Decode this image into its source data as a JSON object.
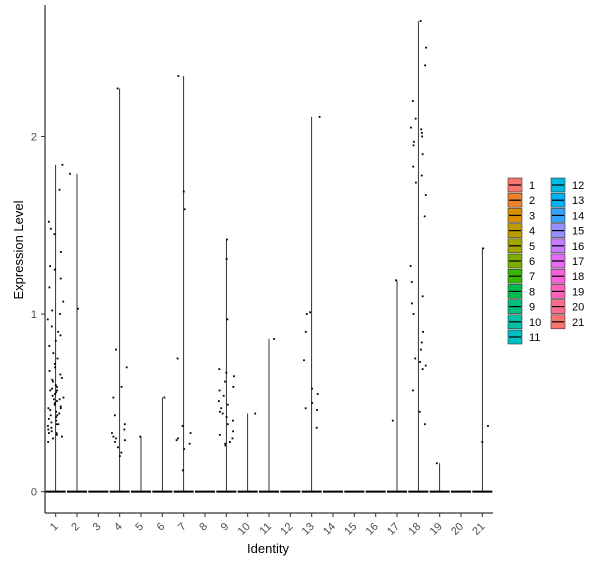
{
  "chart_data": {
    "type": "violin",
    "xlabel": "Identity",
    "ylabel": "Expression Level",
    "categories": [
      "1",
      "2",
      "3",
      "4",
      "5",
      "6",
      "7",
      "8",
      "9",
      "10",
      "11",
      "12",
      "13",
      "14",
      "15",
      "16",
      "17",
      "18",
      "19",
      "20",
      "21"
    ],
    "ylim": [
      -0.12,
      2.74
    ],
    "yticks": [
      0,
      1,
      2
    ],
    "grid": false,
    "legend_position": "right",
    "legend_columns": [
      [
        "1",
        "2",
        "3",
        "4",
        "5",
        "6",
        "7",
        "8",
        "9",
        "10",
        "11"
      ],
      [
        "12",
        "13",
        "14",
        "15",
        "16",
        "17",
        "18",
        "19",
        "20",
        "21"
      ]
    ],
    "colors": [
      "#F8766D",
      "#EA8331",
      "#D89000",
      "#C09B00",
      "#A3A500",
      "#7CAE00",
      "#39B600",
      "#00BB4E",
      "#00BF7D",
      "#00C1A3",
      "#00BFC4",
      "#00BAE0",
      "#00B0F6",
      "#35A2FF",
      "#9590FF",
      "#C77CFF",
      "#E76BF3",
      "#FA62DB",
      "#FF62BC",
      "#FF6C91",
      "#F8766D"
    ],
    "violin_max": [
      1.84,
      1.79,
      0,
      2.27,
      0.31,
      0.53,
      2.34,
      0,
      1.42,
      0.44,
      0.86,
      0,
      2.11,
      0,
      0,
      0,
      1.19,
      2.65,
      0.16,
      0,
      1.37
    ],
    "points": {
      "1": [
        1.84,
        1.7,
        1.52,
        1.45,
        1.35,
        1.27,
        1.2,
        1.15,
        1.07,
        1.02,
        1.0,
        0.97,
        0.93,
        0.9,
        0.85,
        0.82,
        0.78,
        0.75,
        0.72,
        0.7,
        0.68,
        0.66,
        0.64,
        0.62,
        0.6,
        0.59,
        0.58,
        0.57,
        0.56,
        0.55,
        0.54,
        0.53,
        0.52,
        0.51,
        0.5,
        0.49,
        0.48,
        0.47,
        0.46,
        0.45,
        0.44,
        0.43,
        0.42,
        0.41,
        0.4,
        0.39,
        0.38,
        0.37,
        0.36,
        0.35,
        0.34,
        0.33,
        0.32,
        0.31,
        0.3,
        0.28,
        1.48,
        1.25,
        0.88,
        0.63,
        0.57,
        0.52,
        0.47,
        0.43,
        0.38,
        0.33
      ],
      "2": [
        1.79,
        1.03
      ],
      "3": [],
      "4": [
        2.27,
        0.8,
        0.7,
        0.59,
        0.53,
        0.43,
        0.38,
        0.35,
        0.33,
        0.31,
        0.3,
        0.29,
        0.28,
        0.25,
        0.22,
        0.2
      ],
      "5": [
        0.31
      ],
      "6": [
        0.53
      ],
      "7": [
        2.34,
        1.69,
        1.59,
        0.75,
        0.37,
        0.33,
        0.3,
        0.29,
        0.27,
        0.24,
        0.12
      ],
      "8": [],
      "9": [
        1.42,
        1.31,
        0.97,
        0.69,
        0.67,
        0.65,
        0.62,
        0.59,
        0.57,
        0.54,
        0.51,
        0.49,
        0.47,
        0.45,
        0.44,
        0.42,
        0.4,
        0.38,
        0.34,
        0.32,
        0.3,
        0.28,
        0.27,
        0.26
      ],
      "10": [
        0.44
      ],
      "11": [
        0.86
      ],
      "12": [],
      "13": [
        2.11,
        1.01,
        1.0,
        0.9,
        0.74,
        0.58,
        0.55,
        0.5,
        0.47,
        0.46,
        0.36
      ],
      "14": [],
      "15": [],
      "16": [],
      "17": [
        1.19,
        0.4
      ],
      "18": [
        2.65,
        2.5,
        2.4,
        2.2,
        2.1,
        2.05,
        2.04,
        2.02,
        2.0,
        1.97,
        1.95,
        1.9,
        1.83,
        1.78,
        1.74,
        1.67,
        1.55,
        1.27,
        1.18,
        1.1,
        1.06,
        1.0,
        0.9,
        0.84,
        0.8,
        0.75,
        0.73,
        0.71,
        0.69,
        0.57,
        0.45,
        0.38
      ],
      "19": [
        0.16
      ],
      "20": [],
      "21": [
        1.37,
        0.37,
        0.28
      ]
    }
  }
}
